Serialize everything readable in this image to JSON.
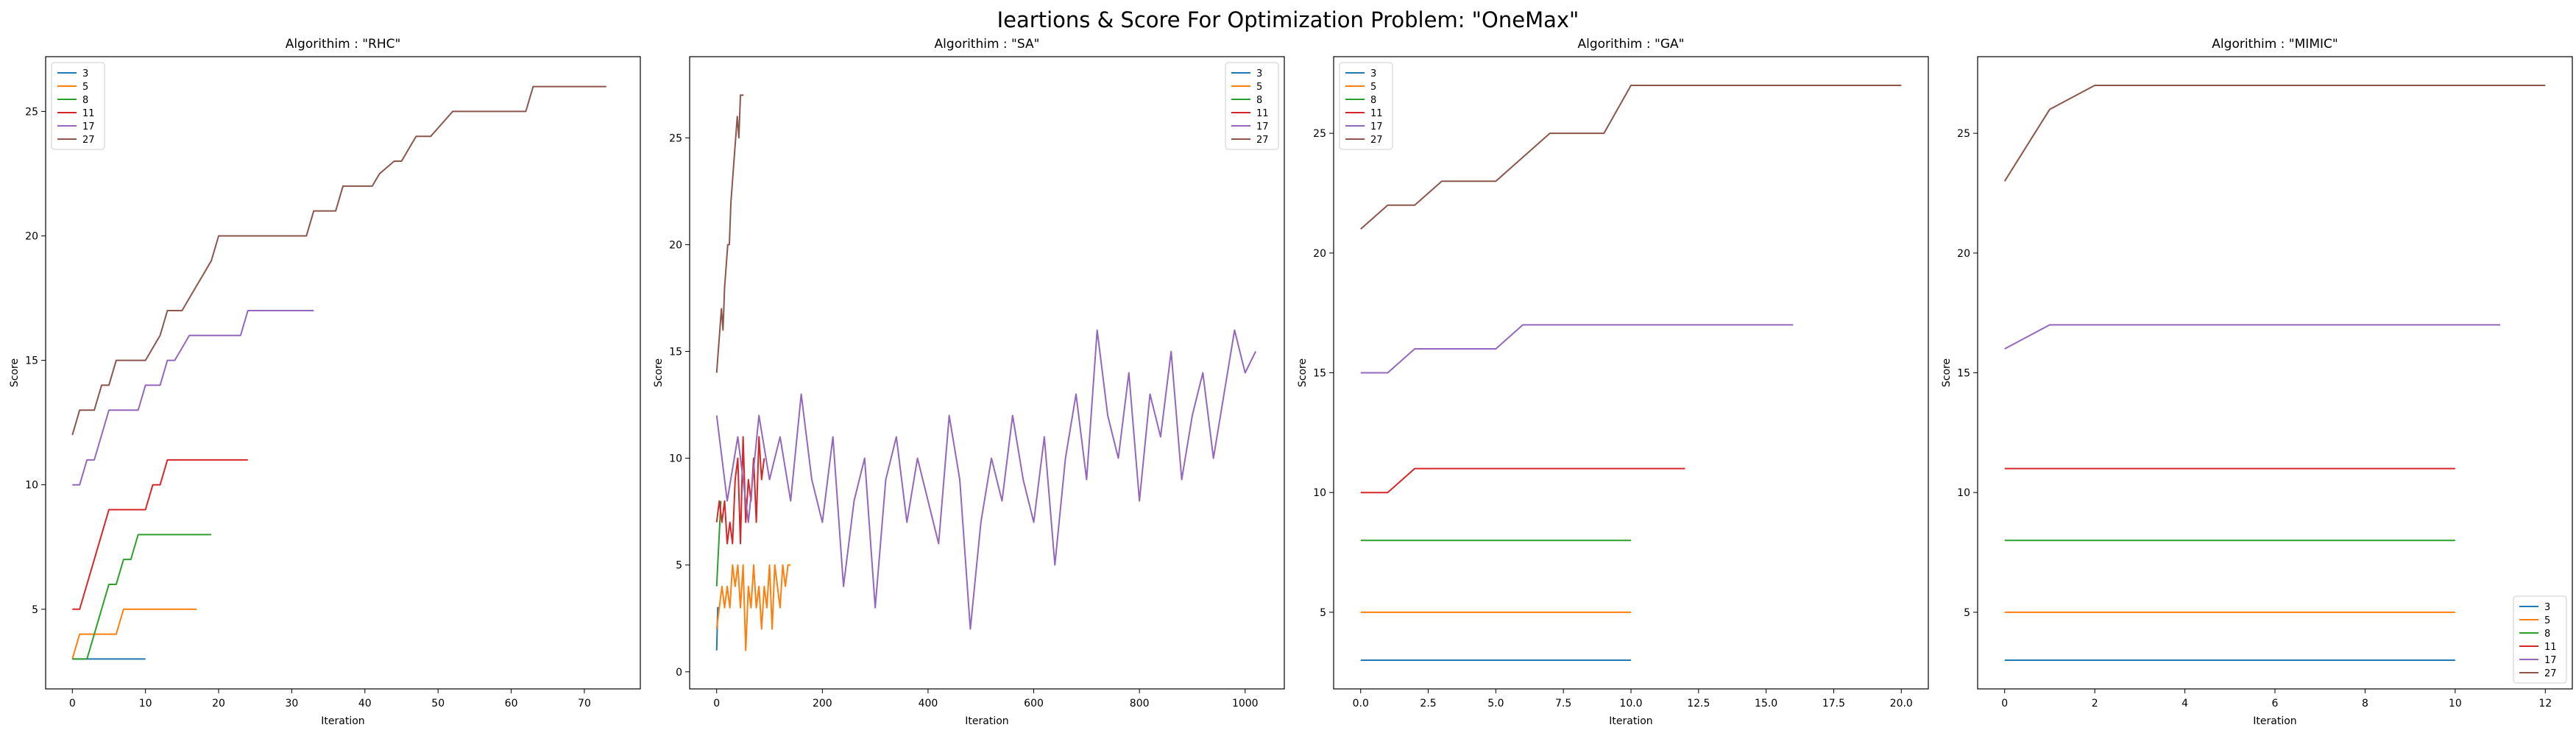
{
  "figure": {
    "suptitle": "Ieartions & Score For Optimization Problem: \"OneMax\""
  },
  "chart_data": [
    {
      "type": "line",
      "title": "Algorithim : \"RHC\"",
      "xlabel": "Iteration",
      "ylabel": "Score",
      "xlim": [
        -3.65,
        77.65
      ],
      "ylim": [
        1.8,
        27.2
      ],
      "xticks": [
        0,
        10,
        20,
        30,
        40,
        50,
        60,
        70
      ],
      "yticks": [
        5,
        10,
        15,
        20,
        25
      ],
      "legend_position": "upper-left",
      "series": [
        {
          "name": "3",
          "color": "#1f77b4",
          "x": [
            0,
            10
          ],
          "y": [
            3,
            3
          ]
        },
        {
          "name": "5",
          "color": "#ff7f0e",
          "x": [
            0,
            1,
            6,
            7,
            17
          ],
          "y": [
            3,
            4,
            4,
            5,
            5
          ]
        },
        {
          "name": "8",
          "color": "#2ca02c",
          "x": [
            0,
            2,
            5,
            6,
            7,
            8,
            9,
            19
          ],
          "y": [
            3,
            3,
            6,
            6,
            7,
            7,
            8,
            8
          ]
        },
        {
          "name": "11",
          "color": "#d62728",
          "x": [
            0,
            1,
            5,
            10,
            11,
            12,
            13,
            14,
            24
          ],
          "y": [
            5,
            5,
            9,
            9,
            10,
            10,
            11,
            11,
            11
          ]
        },
        {
          "name": "17",
          "color": "#9467bd",
          "x": [
            0,
            1,
            2,
            3,
            5,
            9,
            10,
            12,
            13,
            14,
            16,
            17,
            23,
            24,
            33
          ],
          "y": [
            10,
            10,
            11,
            11,
            13,
            13,
            14,
            14,
            15,
            15,
            16,
            16,
            16,
            17,
            17
          ]
        },
        {
          "name": "27",
          "color": "#8c564b",
          "x": [
            0,
            1,
            3,
            4,
            5,
            6,
            10,
            12,
            13,
            15,
            16,
            17,
            18,
            19,
            20,
            22,
            32,
            33,
            36,
            37,
            41,
            42,
            44,
            45,
            46,
            47,
            48,
            49,
            52,
            53,
            62,
            63,
            73
          ],
          "y": [
            12,
            13,
            13,
            14,
            14,
            15,
            15,
            16,
            17,
            17,
            17.5,
            18,
            18.5,
            19,
            20,
            20,
            20,
            21,
            21,
            22,
            22,
            22.5,
            23,
            23,
            23.5,
            24,
            24,
            24,
            25,
            25,
            25,
            26,
            26
          ]
        }
      ]
    },
    {
      "type": "line",
      "title": "Algorithim : \"SA\"",
      "xlabel": "Iteration",
      "ylabel": "Score",
      "xlim": [
        -51.15,
        1074.15
      ],
      "ylim": [
        -0.8,
        28.8
      ],
      "xticks": [
        0,
        200,
        400,
        600,
        800,
        1000
      ],
      "yticks": [
        0,
        5,
        10,
        15,
        20,
        25
      ],
      "legend_position": "upper-right",
      "series": [
        {
          "name": "3",
          "color": "#1f77b4",
          "x": [
            0,
            1,
            2,
            3,
            4
          ],
          "y": [
            1,
            2,
            3,
            3,
            3
          ]
        },
        {
          "name": "5",
          "color": "#ff7f0e",
          "x": [
            0,
            5,
            10,
            15,
            20,
            25,
            30,
            35,
            40,
            45,
            50,
            55,
            60,
            65,
            70,
            75,
            80,
            85,
            90,
            95,
            100,
            105,
            110,
            115,
            120,
            125,
            130,
            135,
            140
          ],
          "y": [
            2,
            3,
            4,
            3,
            4,
            3,
            5,
            4,
            5,
            3,
            5,
            1,
            4,
            3,
            5,
            3,
            4,
            2,
            4,
            3,
            5,
            2,
            5,
            4,
            3,
            5,
            4,
            5,
            5
          ]
        },
        {
          "name": "8",
          "color": "#2ca02c",
          "x": [
            0,
            2,
            4,
            6,
            8
          ],
          "y": [
            4,
            5,
            6,
            7,
            8
          ]
        },
        {
          "name": "11",
          "color": "#d62728",
          "x": [
            0,
            5,
            10,
            15,
            20,
            25,
            30,
            35,
            40,
            45,
            50,
            55,
            60,
            65,
            70,
            75,
            80,
            85,
            90
          ],
          "y": [
            7,
            8,
            7,
            8,
            6,
            7,
            6,
            9,
            10,
            6,
            11,
            7,
            9,
            8,
            10,
            7,
            11,
            9,
            10
          ]
        },
        {
          "name": "17",
          "color": "#9467bd",
          "x": [
            0,
            20,
            40,
            60,
            80,
            100,
            120,
            140,
            160,
            180,
            200,
            220,
            240,
            260,
            280,
            300,
            320,
            340,
            360,
            380,
            400,
            420,
            440,
            460,
            480,
            500,
            520,
            540,
            560,
            580,
            600,
            620,
            640,
            660,
            680,
            700,
            720,
            740,
            760,
            780,
            800,
            820,
            840,
            860,
            880,
            900,
            920,
            940,
            960,
            980,
            1000,
            1020
          ],
          "y": [
            12,
            8,
            11,
            7,
            12,
            9,
            11,
            8,
            13,
            9,
            7,
            11,
            4,
            8,
            10,
            3,
            9,
            11,
            7,
            10,
            8,
            6,
            12,
            9,
            2,
            7,
            10,
            8,
            12,
            9,
            7,
            11,
            5,
            10,
            13,
            9,
            16,
            12,
            10,
            14,
            8,
            13,
            11,
            15,
            9,
            12,
            14,
            10,
            13,
            16,
            14,
            15
          ]
        },
        {
          "name": "27",
          "color": "#8c564b",
          "x": [
            0,
            3,
            6,
            9,
            12,
            15,
            18,
            21,
            24,
            27,
            30,
            33,
            36,
            39,
            42,
            45,
            48,
            51
          ],
          "y": [
            14,
            15,
            16,
            17,
            16,
            18,
            19,
            20,
            20,
            22,
            23,
            24,
            25,
            26,
            25,
            27,
            27,
            27
          ]
        }
      ]
    },
    {
      "type": "line",
      "title": "Algorithim : \"GA\"",
      "xlabel": "Iteration",
      "ylabel": "Score",
      "xlim": [
        -1.0,
        21.0
      ],
      "ylim": [
        1.8,
        28.2
      ],
      "xticks": [
        0.0,
        2.5,
        5.0,
        7.5,
        10.0,
        12.5,
        15.0,
        17.5,
        20.0
      ],
      "yticks": [
        5,
        10,
        15,
        20,
        25
      ],
      "legend_position": "upper-left",
      "series": [
        {
          "name": "3",
          "color": "#1f77b4",
          "x": [
            0,
            10
          ],
          "y": [
            3,
            3
          ]
        },
        {
          "name": "5",
          "color": "#ff7f0e",
          "x": [
            0,
            10
          ],
          "y": [
            5,
            5
          ]
        },
        {
          "name": "8",
          "color": "#2ca02c",
          "x": [
            0,
            10
          ],
          "y": [
            8,
            8
          ]
        },
        {
          "name": "11",
          "color": "#d62728",
          "x": [
            0,
            1,
            2,
            3,
            12
          ],
          "y": [
            10,
            10,
            11,
            11,
            11
          ]
        },
        {
          "name": "17",
          "color": "#9467bd",
          "x": [
            0,
            1,
            2,
            3,
            4,
            5,
            6,
            16
          ],
          "y": [
            15,
            15,
            16,
            16,
            16,
            16,
            17,
            17
          ]
        },
        {
          "name": "27",
          "color": "#8c564b",
          "x": [
            0,
            1,
            2,
            3,
            4,
            5,
            6,
            7,
            8,
            9,
            10,
            20
          ],
          "y": [
            21,
            22,
            22,
            23,
            23,
            23,
            24,
            25,
            25,
            25,
            27,
            27
          ]
        }
      ]
    },
    {
      "type": "line",
      "title": "Algorithim : \"MIMIC\"",
      "xlabel": "Iteration",
      "ylabel": "Score",
      "xlim": [
        -0.6,
        12.6
      ],
      "ylim": [
        1.8,
        28.2
      ],
      "xticks": [
        0,
        2,
        4,
        6,
        8,
        10,
        12
      ],
      "yticks": [
        5,
        10,
        15,
        20,
        25
      ],
      "legend_position": "lower-right",
      "series": [
        {
          "name": "3",
          "color": "#1f77b4",
          "x": [
            0,
            10
          ],
          "y": [
            3,
            3
          ]
        },
        {
          "name": "5",
          "color": "#ff7f0e",
          "x": [
            0,
            10
          ],
          "y": [
            5,
            5
          ]
        },
        {
          "name": "8",
          "color": "#2ca02c",
          "x": [
            0,
            10
          ],
          "y": [
            8,
            8
          ]
        },
        {
          "name": "11",
          "color": "#d62728",
          "x": [
            0,
            10
          ],
          "y": [
            11,
            11
          ]
        },
        {
          "name": "17",
          "color": "#9467bd",
          "x": [
            0,
            1,
            11
          ],
          "y": [
            16,
            17,
            17
          ]
        },
        {
          "name": "27",
          "color": "#8c564b",
          "x": [
            0,
            1,
            2,
            12
          ],
          "y": [
            23,
            26,
            27,
            27
          ]
        }
      ]
    }
  ]
}
